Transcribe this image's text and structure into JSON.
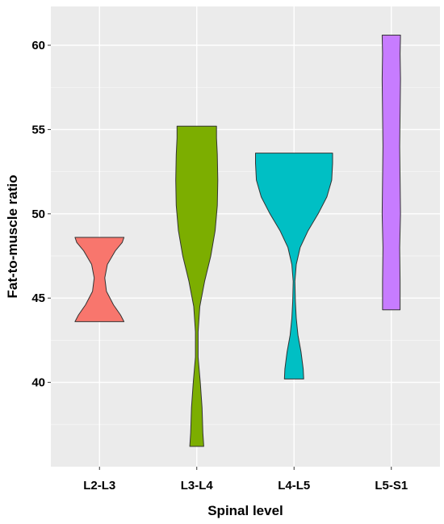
{
  "chart_data": {
    "type": "violin",
    "xlabel": "Spinal level",
    "ylabel": "Fat-to-muscle ratio",
    "categories": [
      "L2-L3",
      "L3-L4",
      "L4-L5",
      "L5-S1"
    ],
    "yticks": [
      40,
      45,
      50,
      55,
      60
    ],
    "ylim": [
      35.0,
      62.3
    ],
    "grid": true,
    "legend": "none",
    "series": [
      {
        "category": "L2-L3",
        "color": "#F8766D",
        "profile": [
          [
            43.6,
            0.56
          ],
          [
            44.0,
            0.48
          ],
          [
            44.6,
            0.32
          ],
          [
            45.4,
            0.16
          ],
          [
            46.2,
            0.12
          ],
          [
            47.0,
            0.18
          ],
          [
            47.8,
            0.36
          ],
          [
            48.3,
            0.52
          ],
          [
            48.6,
            0.56
          ]
        ]
      },
      {
        "category": "L3-L4",
        "color": "#7CAE00",
        "profile": [
          [
            36.2,
            0.16
          ],
          [
            37.0,
            0.14
          ],
          [
            38.5,
            0.12
          ],
          [
            40.0,
            0.08
          ],
          [
            41.5,
            0.03
          ],
          [
            43.0,
            0.03
          ],
          [
            44.5,
            0.07
          ],
          [
            46.0,
            0.18
          ],
          [
            47.5,
            0.32
          ],
          [
            49.0,
            0.42
          ],
          [
            50.5,
            0.47
          ],
          [
            52.0,
            0.48
          ],
          [
            53.5,
            0.47
          ],
          [
            54.5,
            0.45
          ],
          [
            55.2,
            0.45
          ]
        ]
      },
      {
        "category": "L4-L5",
        "color": "#00BFC4",
        "profile": [
          [
            40.2,
            0.22
          ],
          [
            40.8,
            0.21
          ],
          [
            41.8,
            0.16
          ],
          [
            42.8,
            0.09
          ],
          [
            43.8,
            0.05
          ],
          [
            44.8,
            0.03
          ],
          [
            46.0,
            0.02
          ],
          [
            47.0,
            0.05
          ],
          [
            48.0,
            0.14
          ],
          [
            49.0,
            0.32
          ],
          [
            50.0,
            0.55
          ],
          [
            51.0,
            0.75
          ],
          [
            52.0,
            0.86
          ],
          [
            53.0,
            0.88
          ],
          [
            53.6,
            0.88
          ]
        ]
      },
      {
        "category": "L5-S1",
        "color": "#C77CFF",
        "profile": [
          [
            44.3,
            0.2
          ],
          [
            46.0,
            0.2
          ],
          [
            48.0,
            0.19
          ],
          [
            50.0,
            0.21
          ],
          [
            52.0,
            0.2
          ],
          [
            54.0,
            0.19
          ],
          [
            56.0,
            0.2
          ],
          [
            58.0,
            0.21
          ],
          [
            59.5,
            0.2
          ],
          [
            60.6,
            0.21
          ]
        ]
      }
    ]
  }
}
